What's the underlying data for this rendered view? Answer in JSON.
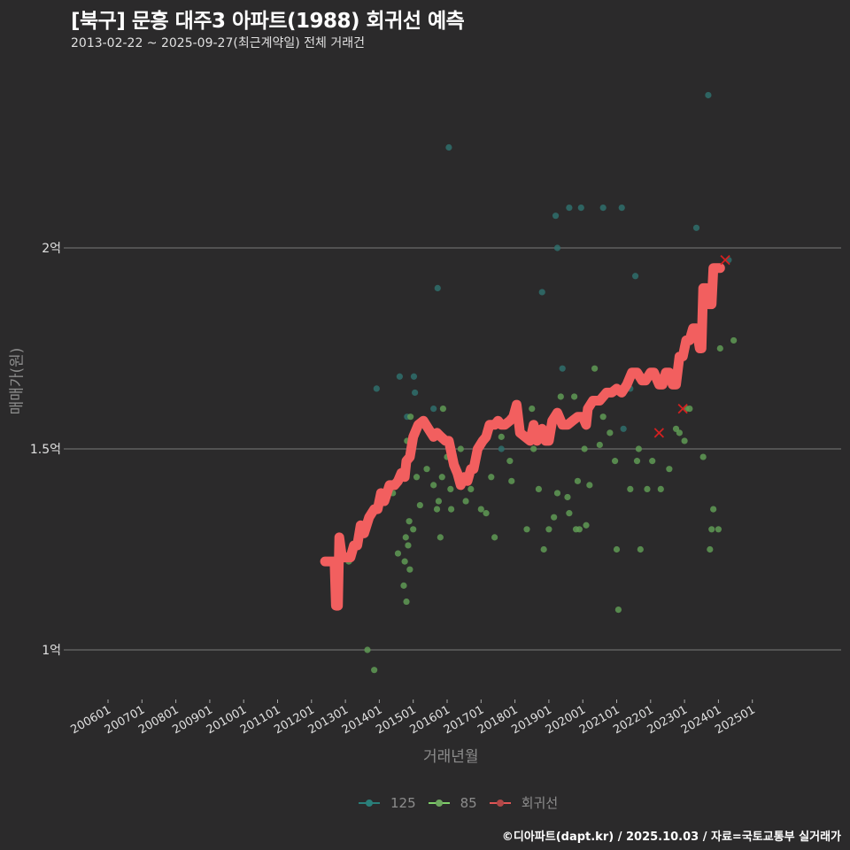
{
  "header": {
    "title": "[북구] 문흥 대주3 아파트(1988) 회귀선 예측",
    "subtitle": "2013-02-22 ~ 2025-09-27(최근계약일) 전체 거래건"
  },
  "axes": {
    "ylabel": "매매가(원)",
    "xlabel": "거래년월"
  },
  "legend": [
    {
      "label": "125",
      "color": "#2a7f7a"
    },
    {
      "label": "85",
      "color": "#6fbf5a"
    },
    {
      "label": "회귀선",
      "color": "#e05555"
    }
  ],
  "footer": "©디아파트(dapt.kr) / 2025.10.03 / 자료=국토교통부 실거래가",
  "colors": {
    "background": "#2b2a2b",
    "grid": "#7a7a7a",
    "s125": "#2f6f6c",
    "s85": "#5f9a55",
    "regression": "#f25f5f",
    "marker_x": "#d42020"
  },
  "chart_data": {
    "type": "scatter",
    "title": "[북구] 문흥 대주3 아파트(1988) 회귀선 예측",
    "subtitle": "2013-02-22 ~ 2025-09-27(최근계약일) 전체 거래건",
    "xlabel": "거래년월",
    "ylabel": "매매가(원)",
    "x_ticks": [
      "200601",
      "200701",
      "200801",
      "200901",
      "201001",
      "201101",
      "201201",
      "201301",
      "201401",
      "201501",
      "201601",
      "201701",
      "201801",
      "201901",
      "202001",
      "202101",
      "202201",
      "202301",
      "202401",
      "202501"
    ],
    "y_ticks": [
      {
        "value": 1.0,
        "label": "1억"
      },
      {
        "value": 1.5,
        "label": "1.5억"
      },
      {
        "value": 2.0,
        "label": "2억"
      }
    ],
    "ylim": [
      0.88,
      2.45
    ],
    "grid": true,
    "legend_position": "bottom",
    "series": [
      {
        "name": "125",
        "type": "scatter",
        "points": [
          [
            2013.92,
            1.65
          ],
          [
            2014.6,
            1.68
          ],
          [
            2014.82,
            1.58
          ],
          [
            2014.9,
            1.5
          ],
          [
            2015.05,
            1.64
          ],
          [
            2015.02,
            1.68
          ],
          [
            2015.6,
            1.6
          ],
          [
            2015.72,
            1.9
          ],
          [
            2016.05,
            2.25
          ],
          [
            2017.6,
            1.5
          ],
          [
            2018.8,
            1.89
          ],
          [
            2019.2,
            2.08
          ],
          [
            2019.25,
            2.0
          ],
          [
            2019.4,
            1.7
          ],
          [
            2019.6,
            2.1
          ],
          [
            2019.95,
            2.1
          ],
          [
            2020.6,
            2.1
          ],
          [
            2021.15,
            2.1
          ],
          [
            2021.2,
            1.55
          ],
          [
            2021.4,
            1.65
          ],
          [
            2021.55,
            1.93
          ],
          [
            2023.35,
            2.05
          ],
          [
            2023.7,
            2.38
          ],
          [
            2024.3,
            1.97
          ]
        ]
      },
      {
        "name": "85",
        "type": "scatter",
        "points": [
          [
            2013.1,
            1.22
          ],
          [
            2013.65,
            1.0
          ],
          [
            2013.85,
            0.95
          ],
          [
            2014.4,
            1.39
          ],
          [
            2014.55,
            1.24
          ],
          [
            2014.72,
            1.16
          ],
          [
            2014.75,
            1.22
          ],
          [
            2014.78,
            1.28
          ],
          [
            2014.8,
            1.12
          ],
          [
            2014.82,
            1.52
          ],
          [
            2014.85,
            1.26
          ],
          [
            2014.88,
            1.32
          ],
          [
            2014.9,
            1.2
          ],
          [
            2014.92,
            1.58
          ],
          [
            2015.0,
            1.3
          ],
          [
            2015.05,
            1.54
          ],
          [
            2015.1,
            1.43
          ],
          [
            2015.2,
            1.36
          ],
          [
            2015.4,
            1.45
          ],
          [
            2015.6,
            1.41
          ],
          [
            2015.7,
            1.35
          ],
          [
            2015.75,
            1.37
          ],
          [
            2015.8,
            1.28
          ],
          [
            2015.85,
            1.43
          ],
          [
            2015.88,
            1.6
          ],
          [
            2016.0,
            1.48
          ],
          [
            2016.1,
            1.4
          ],
          [
            2016.12,
            1.35
          ],
          [
            2016.4,
            1.5
          ],
          [
            2016.55,
            1.37
          ],
          [
            2016.7,
            1.4
          ],
          [
            2016.8,
            1.45
          ],
          [
            2016.85,
            1.5
          ],
          [
            2017.0,
            1.35
          ],
          [
            2017.15,
            1.34
          ],
          [
            2017.3,
            1.43
          ],
          [
            2017.4,
            1.28
          ],
          [
            2017.6,
            1.53
          ],
          [
            2017.85,
            1.47
          ],
          [
            2017.9,
            1.42
          ],
          [
            2018.2,
            1.54
          ],
          [
            2018.35,
            1.3
          ],
          [
            2018.5,
            1.6
          ],
          [
            2018.55,
            1.5
          ],
          [
            2018.7,
            1.4
          ],
          [
            2018.85,
            1.25
          ],
          [
            2019.0,
            1.3
          ],
          [
            2019.05,
            1.53
          ],
          [
            2019.15,
            1.33
          ],
          [
            2019.25,
            1.39
          ],
          [
            2019.35,
            1.63
          ],
          [
            2019.55,
            1.38
          ],
          [
            2019.6,
            1.34
          ],
          [
            2019.75,
            1.63
          ],
          [
            2019.8,
            1.3
          ],
          [
            2019.85,
            1.42
          ],
          [
            2019.9,
            1.3
          ],
          [
            2020.05,
            1.5
          ],
          [
            2020.1,
            1.31
          ],
          [
            2020.2,
            1.41
          ],
          [
            2020.35,
            1.7
          ],
          [
            2020.5,
            1.51
          ],
          [
            2020.6,
            1.58
          ],
          [
            2020.8,
            1.54
          ],
          [
            2020.95,
            1.47
          ],
          [
            2021.0,
            1.25
          ],
          [
            2021.05,
            1.1
          ],
          [
            2021.4,
            1.4
          ],
          [
            2021.6,
            1.47
          ],
          [
            2021.65,
            1.5
          ],
          [
            2021.7,
            1.25
          ],
          [
            2021.9,
            1.4
          ],
          [
            2022.05,
            1.47
          ],
          [
            2022.3,
            1.4
          ],
          [
            2022.55,
            1.45
          ],
          [
            2022.75,
            1.55
          ],
          [
            2022.85,
            1.54
          ],
          [
            2023.0,
            1.52
          ],
          [
            2023.05,
            1.6
          ],
          [
            2023.15,
            1.6
          ],
          [
            2023.3,
            1.78
          ],
          [
            2023.45,
            1.75
          ],
          [
            2023.55,
            1.48
          ],
          [
            2023.75,
            1.25
          ],
          [
            2023.8,
            1.3
          ],
          [
            2023.85,
            1.35
          ],
          [
            2024.0,
            1.3
          ],
          [
            2024.05,
            1.75
          ],
          [
            2024.45,
            1.77
          ]
        ]
      },
      {
        "name": "회귀선",
        "type": "line",
        "points": [
          [
            2012.4,
            1.22
          ],
          [
            2012.68,
            1.22
          ],
          [
            2012.72,
            1.11
          ],
          [
            2012.78,
            1.11
          ],
          [
            2012.82,
            1.28
          ],
          [
            2012.9,
            1.23
          ],
          [
            2013.0,
            1.23
          ],
          [
            2013.15,
            1.23
          ],
          [
            2013.25,
            1.26
          ],
          [
            2013.35,
            1.26
          ],
          [
            2013.45,
            1.31
          ],
          [
            2013.55,
            1.29
          ],
          [
            2013.7,
            1.33
          ],
          [
            2013.85,
            1.35
          ],
          [
            2013.95,
            1.35
          ],
          [
            2014.05,
            1.39
          ],
          [
            2014.15,
            1.37
          ],
          [
            2014.3,
            1.41
          ],
          [
            2014.45,
            1.41
          ],
          [
            2014.55,
            1.42
          ],
          [
            2014.65,
            1.44
          ],
          [
            2014.75,
            1.43
          ],
          [
            2014.8,
            1.47
          ],
          [
            2014.9,
            1.48
          ],
          [
            2015.0,
            1.53
          ],
          [
            2015.15,
            1.56
          ],
          [
            2015.3,
            1.57
          ],
          [
            2015.45,
            1.55
          ],
          [
            2015.6,
            1.53
          ],
          [
            2015.7,
            1.54
          ],
          [
            2015.82,
            1.53
          ],
          [
            2015.95,
            1.52
          ],
          [
            2016.05,
            1.52
          ],
          [
            2016.2,
            1.46
          ],
          [
            2016.3,
            1.44
          ],
          [
            2016.4,
            1.41
          ],
          [
            2016.5,
            1.43
          ],
          [
            2016.6,
            1.42
          ],
          [
            2016.7,
            1.45
          ],
          [
            2016.78,
            1.45
          ],
          [
            2016.9,
            1.5
          ],
          [
            2017.05,
            1.52
          ],
          [
            2017.15,
            1.53
          ],
          [
            2017.25,
            1.56
          ],
          [
            2017.4,
            1.56
          ],
          [
            2017.5,
            1.57
          ],
          [
            2017.6,
            1.56
          ],
          [
            2017.7,
            1.56
          ],
          [
            2017.85,
            1.57
          ],
          [
            2017.95,
            1.58
          ],
          [
            2018.05,
            1.61
          ],
          [
            2018.15,
            1.54
          ],
          [
            2018.3,
            1.53
          ],
          [
            2018.45,
            1.52
          ],
          [
            2018.55,
            1.56
          ],
          [
            2018.65,
            1.52
          ],
          [
            2018.8,
            1.55
          ],
          [
            2018.9,
            1.52
          ],
          [
            2019.0,
            1.52
          ],
          [
            2019.1,
            1.57
          ],
          [
            2019.25,
            1.59
          ],
          [
            2019.4,
            1.56
          ],
          [
            2019.55,
            1.56
          ],
          [
            2019.7,
            1.57
          ],
          [
            2019.85,
            1.58
          ],
          [
            2020.0,
            1.58
          ],
          [
            2020.1,
            1.56
          ],
          [
            2020.15,
            1.6
          ],
          [
            2020.3,
            1.62
          ],
          [
            2020.5,
            1.62
          ],
          [
            2020.7,
            1.64
          ],
          [
            2020.85,
            1.64
          ],
          [
            2021.0,
            1.65
          ],
          [
            2021.15,
            1.64
          ],
          [
            2021.3,
            1.66
          ],
          [
            2021.45,
            1.69
          ],
          [
            2021.6,
            1.69
          ],
          [
            2021.75,
            1.67
          ],
          [
            2021.85,
            1.67
          ],
          [
            2022.0,
            1.69
          ],
          [
            2022.1,
            1.69
          ],
          [
            2022.25,
            1.66
          ],
          [
            2022.35,
            1.66
          ],
          [
            2022.45,
            1.69
          ],
          [
            2022.55,
            1.69
          ],
          [
            2022.65,
            1.66
          ],
          [
            2022.75,
            1.66
          ],
          [
            2022.85,
            1.73
          ],
          [
            2022.95,
            1.73
          ],
          [
            2023.05,
            1.77
          ],
          [
            2023.15,
            1.77
          ],
          [
            2023.25,
            1.8
          ],
          [
            2023.35,
            1.8
          ],
          [
            2023.45,
            1.75
          ],
          [
            2023.5,
            1.75
          ],
          [
            2023.55,
            1.9
          ],
          [
            2023.65,
            1.9
          ],
          [
            2023.7,
            1.86
          ],
          [
            2023.8,
            1.86
          ],
          [
            2023.85,
            1.95
          ],
          [
            2024.05,
            1.95
          ]
        ]
      }
    ],
    "highlighted_points": [
      [
        2022.25,
        1.54
      ],
      [
        2022.95,
        1.6
      ],
      [
        2024.2,
        1.97
      ]
    ]
  }
}
